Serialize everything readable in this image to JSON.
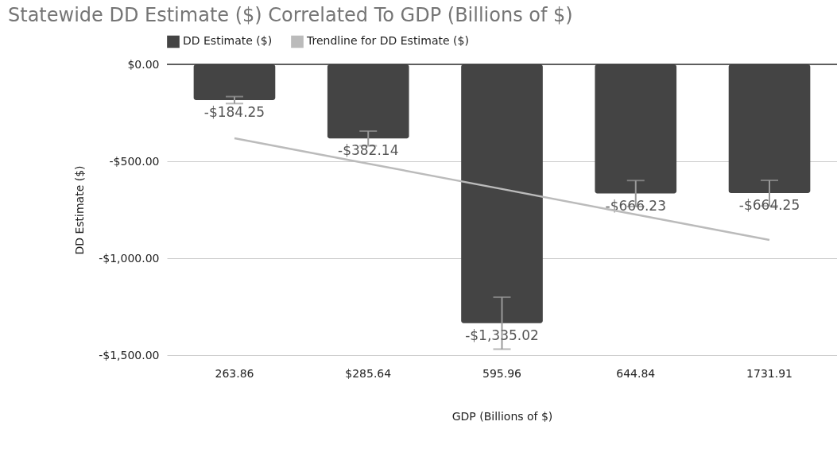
{
  "chart_data": {
    "type": "bar",
    "title": "Statewide DD Estimate ($) Correlated To GDP (Billions of $)",
    "xlabel": "GDP (Billions of $)",
    "ylabel": "DD Estimate ($)",
    "categories": [
      "263.86",
      "$285.64",
      "595.96",
      "644.84",
      "1731.91"
    ],
    "series": [
      {
        "name": "DD Estimate ($)",
        "color": "#444444",
        "values": [
          -184.25,
          -382.14,
          -1335.02,
          -666.23,
          -664.25
        ],
        "errors": [
          18,
          38,
          134,
          67,
          66
        ],
        "value_labels": [
          "-$184.25",
          "-$382.14",
          "-$1,335.02",
          "-$666.23",
          "-$664.25"
        ]
      },
      {
        "name": "Trendline for DD Estimate ($)",
        "type": "line",
        "color": "#bbbbbb",
        "values": [
          -381,
          -512,
          -643,
          -775,
          -906
        ]
      }
    ],
    "ylim": [
      -1500,
      0
    ],
    "yticks": [
      {
        "value": -1500,
        "label": "-$1,500.00"
      },
      {
        "value": -1000,
        "label": "-$1,000.00"
      },
      {
        "value": -500,
        "label": "-$500.00"
      },
      {
        "value": 0,
        "label": "$0.00"
      }
    ],
    "grid": "y",
    "legend": "top"
  }
}
